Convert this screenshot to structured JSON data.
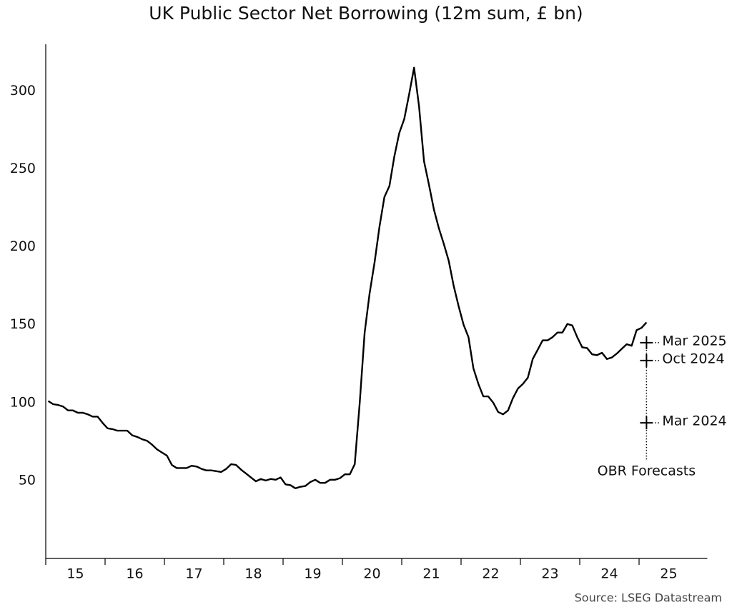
{
  "chart_data": {
    "type": "line",
    "title": "UK Public Sector Net Borrowing (12m sum, £ bn)",
    "source": "Source: LSEG Datastream",
    "x": [
      15.042,
      15.125,
      15.208,
      15.292,
      15.375,
      15.458,
      15.542,
      15.625,
      15.708,
      15.792,
      15.875,
      15.958,
      16.042,
      16.125,
      16.208,
      16.292,
      16.375,
      16.458,
      16.542,
      16.625,
      16.708,
      16.792,
      16.875,
      16.958,
      17.042,
      17.125,
      17.208,
      17.292,
      17.375,
      17.458,
      17.542,
      17.625,
      17.708,
      17.792,
      17.875,
      17.958,
      18.042,
      18.125,
      18.208,
      18.292,
      18.375,
      18.458,
      18.542,
      18.625,
      18.708,
      18.792,
      18.875,
      18.958,
      19.042,
      19.125,
      19.208,
      19.292,
      19.375,
      19.458,
      19.542,
      19.625,
      19.708,
      19.792,
      19.875,
      19.958,
      20.042,
      20.125,
      20.208,
      20.292,
      20.375,
      20.458,
      20.542,
      20.625,
      20.708,
      20.792,
      20.875,
      20.958,
      21.042,
      21.125,
      21.208,
      21.292,
      21.375,
      21.458,
      21.542,
      21.625,
      21.708,
      21.792,
      21.875,
      21.958,
      22.042,
      22.125,
      22.208,
      22.292,
      22.375,
      22.458,
      22.542,
      22.625,
      22.708,
      22.792,
      22.875,
      22.958,
      23.042,
      23.125,
      23.208,
      23.292,
      23.375,
      23.458,
      23.542,
      23.625,
      23.708,
      23.792,
      23.875,
      23.958,
      24.042,
      24.125,
      24.208,
      24.292,
      24.375,
      24.458,
      24.542,
      24.625,
      24.708,
      24.792,
      24.875,
      24.958,
      25.042,
      25.125
    ],
    "series": [
      {
        "color": "#000000",
        "values": [
          101,
          99,
          98.5,
          97.5,
          95,
          95,
          93.5,
          93.5,
          92.5,
          91,
          91,
          87,
          83.5,
          83,
          82,
          82,
          82,
          79,
          78,
          76.5,
          75.5,
          73,
          70,
          68,
          66,
          60,
          58,
          58,
          58,
          59.5,
          59,
          57.5,
          56.5,
          56.5,
          56,
          55.5,
          57.5,
          60.5,
          60,
          57,
          54.5,
          52,
          49.5,
          51,
          50,
          51,
          50.5,
          52,
          47.5,
          47,
          45,
          46,
          46.5,
          49,
          50.5,
          48.5,
          48.5,
          50.5,
          50.5,
          51.5,
          54,
          54,
          60.5,
          100,
          145,
          170,
          190,
          213,
          232,
          239,
          258,
          273,
          282,
          298,
          315,
          290,
          255,
          240,
          224,
          212,
          202,
          191,
          175,
          162,
          150,
          142,
          122,
          112,
          104,
          104,
          100,
          94,
          92.5,
          95,
          103,
          109,
          112,
          116,
          128,
          134,
          140,
          140,
          142,
          145,
          145,
          150.5,
          149.5,
          142,
          135.5,
          135,
          131,
          130.5,
          132,
          128,
          129,
          131.5,
          134.5,
          137.5,
          136.5,
          146.5,
          148,
          151.5
        ]
      }
    ],
    "forecasts": {
      "label": "OBR Forecasts",
      "x": 25.125,
      "points": [
        {
          "label": "Mar 2025",
          "value": 138.5
        },
        {
          "label": "Oct 2024",
          "value": 127
        },
        {
          "label": "Mar 2024",
          "value": 87
        }
      ]
    },
    "xlim": [
      15,
      26.15
    ],
    "xticks": [
      15,
      16,
      17,
      18,
      19,
      20,
      21,
      22,
      23,
      24,
      25
    ],
    "ylim": [
      0,
      330
    ],
    "yticks": [
      50,
      100,
      150,
      200,
      250,
      300
    ]
  }
}
